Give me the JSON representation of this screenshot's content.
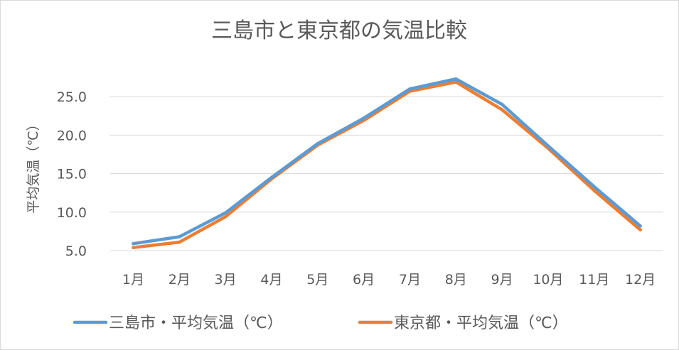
{
  "chart_data": {
    "type": "line",
    "title": "三島市と東京都の気温比較",
    "xlabel": "",
    "ylabel": "平均気温（℃）",
    "categories": [
      "1月",
      "2月",
      "3月",
      "4月",
      "5月",
      "6月",
      "7月",
      "8月",
      "9月",
      "10月",
      "11月",
      "12月"
    ],
    "ylim": [
      5.0,
      27.5
    ],
    "yticks": [
      "5.0",
      "10.0",
      "15.0",
      "20.0",
      "25.0"
    ],
    "ytick_values": [
      5,
      10,
      15,
      20,
      25
    ],
    "grid": true,
    "legend_position": "bottom",
    "series": [
      {
        "name": "三島市・平均気温（℃）",
        "color": "#5b9bd5",
        "values": [
          5.9,
          6.8,
          9.9,
          14.5,
          18.9,
          22.2,
          26.0,
          27.3,
          24.0,
          18.6,
          13.3,
          8.2
        ]
      },
      {
        "name": "東京都・平均気温（℃）",
        "color": "#ed7d31",
        "values": [
          5.4,
          6.1,
          9.4,
          14.3,
          18.7,
          21.9,
          25.7,
          26.9,
          23.3,
          18.3,
          12.8,
          7.7
        ]
      }
    ]
  }
}
